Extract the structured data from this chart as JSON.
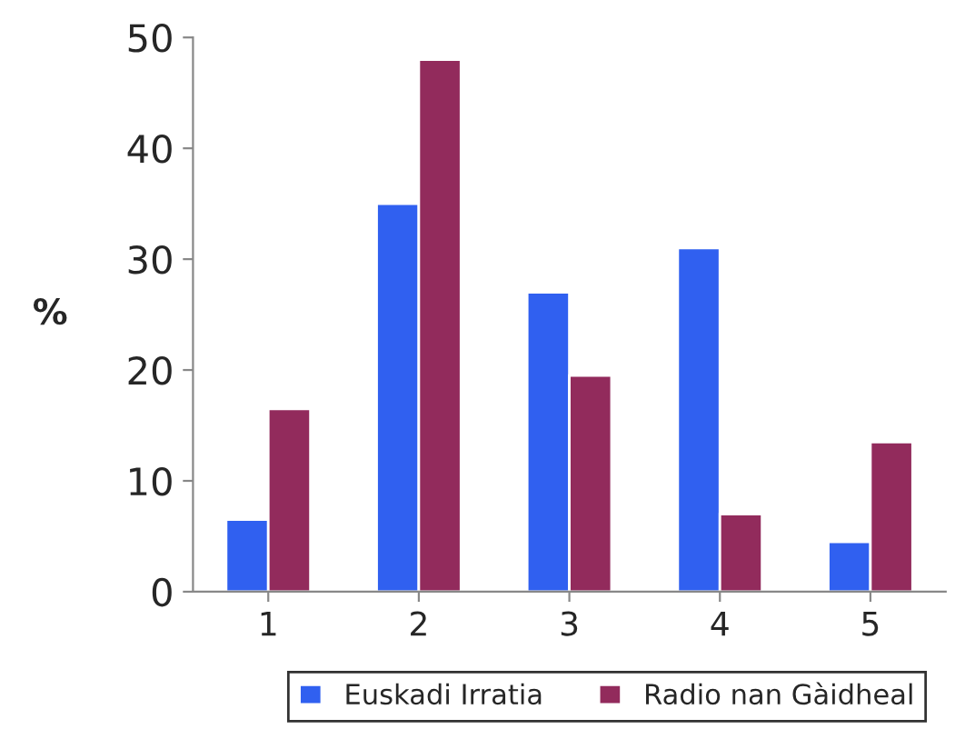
{
  "chart_data": {
    "type": "bar",
    "ylabel": "%",
    "categories": [
      "1",
      "2",
      "3",
      "4",
      "5"
    ],
    "series": [
      {
        "name": "Euskadi Irratia",
        "color": "#3060f0",
        "values": [
          6.5,
          35,
          27,
          31,
          4.5
        ]
      },
      {
        "name": "Radio nan Gàidheal",
        "color": "#922b5c",
        "values": [
          16.5,
          48,
          19.5,
          7,
          13.5
        ]
      }
    ],
    "ylim": [
      0,
      50
    ],
    "yticks": [
      0,
      10,
      20,
      30,
      40,
      50
    ],
    "grid": false,
    "legend": "bottom"
  }
}
